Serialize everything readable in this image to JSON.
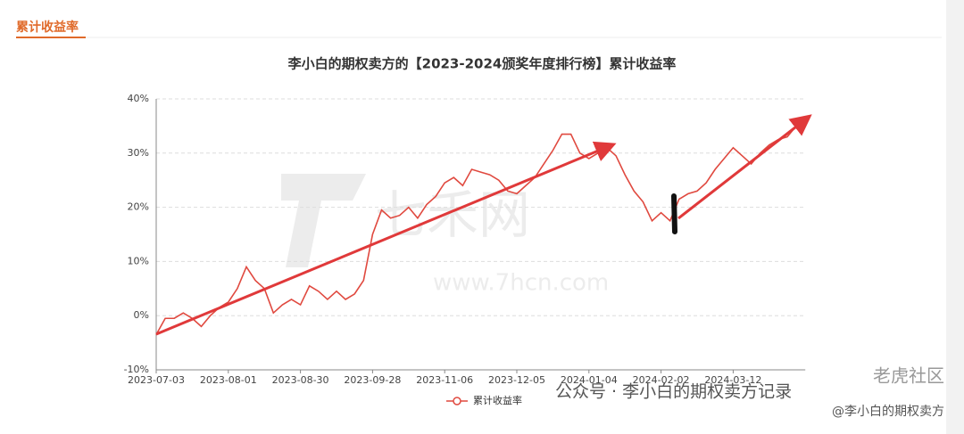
{
  "section_title": "累计收益率",
  "chart_data": {
    "type": "line",
    "title": "李小白的期权卖方的【2023-2024颁奖年度排行榜】累计收益率",
    "categories": [
      "2023-07-03",
      null,
      null,
      null,
      null,
      null,
      null,
      null,
      "2023-08-01",
      null,
      null,
      null,
      null,
      null,
      null,
      null,
      "2023-08-30",
      null,
      null,
      null,
      null,
      null,
      null,
      null,
      "2023-09-28",
      null,
      null,
      null,
      null,
      null,
      null,
      null,
      "2023-11-06",
      null,
      null,
      null,
      null,
      null,
      null,
      null,
      "2023-12-05",
      null,
      null,
      null,
      null,
      null,
      null,
      null,
      "2024-01-04",
      null,
      null,
      null,
      null,
      null,
      null,
      null,
      "2024-02-02",
      null,
      null,
      null,
      null,
      null,
      null,
      null,
      "2024-03-12",
      null,
      null,
      null,
      null,
      null,
      null,
      null
    ],
    "series": [
      {
        "name": "累计收益率",
        "color": "#e0493f",
        "values": [
          -3.5,
          -0.5,
          -0.5,
          0.5,
          -0.5,
          -2,
          0,
          1.5,
          2.5,
          5,
          9,
          6.5,
          5,
          0.5,
          2,
          3,
          2,
          5.5,
          4.5,
          3,
          4.5,
          3,
          4,
          6.5,
          15,
          19.5,
          18,
          18.5,
          20,
          18,
          20.5,
          22,
          24.5,
          25.5,
          24,
          27,
          26.5,
          26,
          25,
          23,
          22.5,
          24,
          25.5,
          28,
          30.5,
          33.5,
          33.5,
          30,
          29,
          30,
          31,
          29.5,
          26,
          23,
          21,
          17.5,
          19,
          17.5,
          21.5,
          22.5,
          23,
          24.5,
          27,
          29,
          31,
          29.5,
          28,
          30,
          31.5,
          32.5,
          33,
          35
        ]
      }
    ],
    "ylim": [
      -10,
      40
    ],
    "yticks": [
      {
        "value": -10,
        "label": "-10%"
      },
      {
        "value": 0,
        "label": "0%"
      },
      {
        "value": 10,
        "label": "10%"
      },
      {
        "value": 20,
        "label": "20%"
      },
      {
        "value": 30,
        "label": "30%"
      },
      {
        "value": 40,
        "label": "40%"
      }
    ],
    "grid": true,
    "watermarks": [
      "七禾网",
      "www.7hcn.com",
      "公众号 · 李小白的期权卖方记录",
      "老虎社区",
      "@李小白的期权卖方"
    ]
  }
}
